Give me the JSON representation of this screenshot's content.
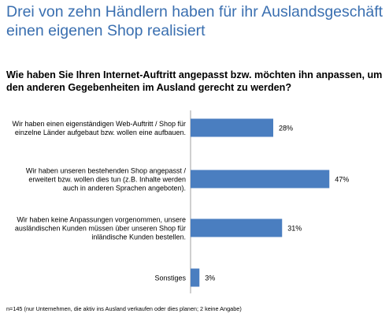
{
  "header": {
    "title": "Drei von zehn Händlern haben für ihr Auslandsgeschäft einen eigenen Shop realisiert",
    "question": "Wie haben Sie Ihren Internet-Auftritt angepasst bzw. möchten ihn anpassen, um den anderen Gegebenheiten im Ausland gerecht zu werden?"
  },
  "chart_data": {
    "type": "bar",
    "orientation": "horizontal",
    "categories": [
      [
        "Wir haben einen eigenständigen Web-Auftritt / Shop für",
        "einzelne Länder aufgebaut bzw. wollen eine aufbauen."
      ],
      [
        "Wir haben unseren bestehenden Shop angepasst /",
        "erweitert bzw. wollen dies tun (z.B. Inhalte werden",
        "auch in anderen Sprachen angeboten)."
      ],
      [
        "Wir haben keine Anpassungen vorgenommen, unsere",
        "ausländischen Kunden müssen über unseren Shop für",
        "inländische Kunden bestellen."
      ],
      [
        "Sonstiges"
      ]
    ],
    "values": [
      28,
      47,
      31,
      3
    ],
    "value_labels": [
      "28%",
      "47%",
      "31%",
      "3%"
    ],
    "unit": "%",
    "bar_color": "#4a7ec0",
    "grid": false
  },
  "footnote": "n=145 (nur Unternehmen, die aktiv ins Ausland verkaufen oder dies planen; 2 keine Angabe)"
}
